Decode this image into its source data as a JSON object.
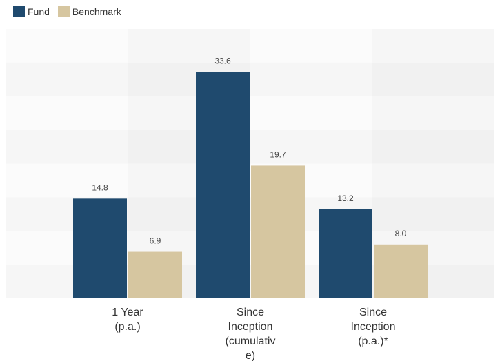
{
  "chart_data": {
    "type": "bar",
    "categories": [
      [
        "1 Year",
        "(p.a.)"
      ],
      [
        "Since",
        "Inception",
        "(cumulativ",
        "e)"
      ],
      [
        "Since",
        "Inception",
        "(p.a.)*"
      ]
    ],
    "series": [
      {
        "name": "Fund",
        "color": "#1f4a6e",
        "values": [
          14.8,
          33.6,
          13.2
        ],
        "labels": [
          "14.8",
          "33.6",
          "13.2"
        ]
      },
      {
        "name": "Benchmark",
        "color": "#d6c6a0",
        "values": [
          6.9,
          19.7,
          8.0
        ],
        "labels": [
          "6.9",
          "19.7",
          "8.0"
        ]
      }
    ],
    "ylim": [
      0,
      40
    ],
    "grid": false,
    "legend": "top-left",
    "title": "",
    "xlabel": "",
    "ylabel": ""
  }
}
